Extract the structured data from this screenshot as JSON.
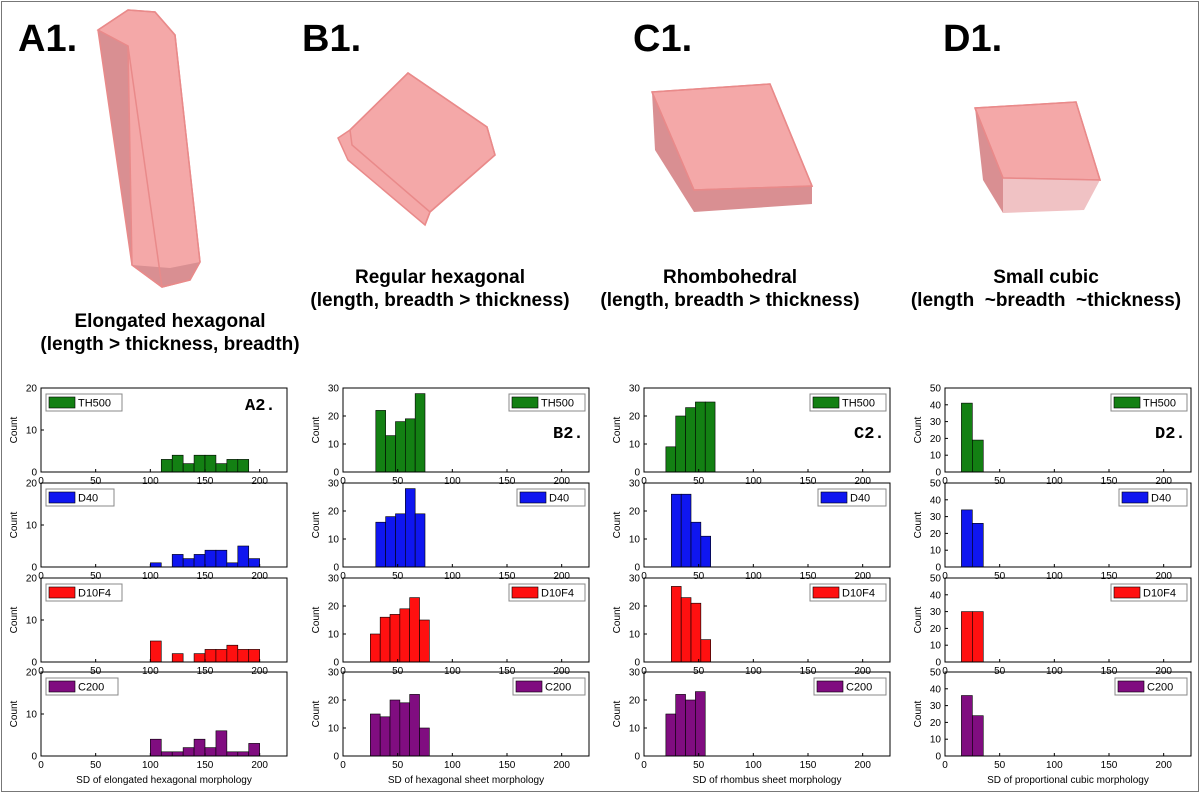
{
  "panels": {
    "A1": {
      "label": "A1.",
      "line1": "Elongated hexagonal",
      "line2": "(length > thickness, breadth)"
    },
    "B1": {
      "label": "B1.",
      "line1": "Regular hexagonal",
      "line2": "(length, breadth > thickness)"
    },
    "C1": {
      "label": "C1.",
      "line1": "Rhombohedral",
      "line2": "(length, breadth > thickness)"
    },
    "D1": {
      "label": "D1.",
      "line1": "Small cubic",
      "line2": "(length  ~breadth  ~thickness)"
    }
  },
  "colors": {
    "crystal_face": "#f4a8a8",
    "crystal_side": "#d98f92",
    "crystal_edge": "#e98a8a",
    "TH500": "#138013",
    "D40": "#0f16f0",
    "D10F4": "#ff1010",
    "C200": "#800d80"
  },
  "chart_data": [
    {
      "type": "bar",
      "id": "A2",
      "sublabel": "A2.",
      "xlabel": "SD of elongated hexagonal morphology",
      "ylabel": "Count",
      "xlim": [
        0,
        225
      ],
      "xticks": [
        0,
        50,
        100,
        150,
        200
      ],
      "bin_width": 10,
      "series": [
        {
          "name": "TH500",
          "ylim": [
            0,
            20
          ],
          "yticks": [
            0,
            10,
            20
          ],
          "bins": [
            [
              110,
              3
            ],
            [
              120,
              4
            ],
            [
              130,
              2
            ],
            [
              140,
              4
            ],
            [
              150,
              4
            ],
            [
              160,
              2
            ],
            [
              170,
              3
            ],
            [
              180,
              3
            ]
          ]
        },
        {
          "name": "D40",
          "ylim": [
            0,
            20
          ],
          "yticks": [
            0,
            10,
            20
          ],
          "bins": [
            [
              100,
              1
            ],
            [
              120,
              3
            ],
            [
              130,
              2
            ],
            [
              140,
              3
            ],
            [
              150,
              4
            ],
            [
              160,
              4
            ],
            [
              170,
              1
            ],
            [
              180,
              5
            ],
            [
              190,
              2
            ]
          ]
        },
        {
          "name": "D10F4",
          "ylim": [
            0,
            20
          ],
          "yticks": [
            0,
            10,
            20
          ],
          "bins": [
            [
              100,
              5
            ],
            [
              120,
              2
            ],
            [
              140,
              2
            ],
            [
              150,
              3
            ],
            [
              160,
              3
            ],
            [
              170,
              4
            ],
            [
              180,
              3
            ],
            [
              190,
              3
            ]
          ]
        },
        {
          "name": "C200",
          "ylim": [
            0,
            20
          ],
          "yticks": [
            0,
            10,
            20
          ],
          "bins": [
            [
              100,
              4
            ],
            [
              110,
              1
            ],
            [
              120,
              1
            ],
            [
              130,
              2
            ],
            [
              140,
              4
            ],
            [
              150,
              2
            ],
            [
              160,
              6
            ],
            [
              170,
              1
            ],
            [
              180,
              1
            ],
            [
              190,
              3
            ]
          ]
        }
      ]
    },
    {
      "type": "bar",
      "id": "B2",
      "sublabel": "B2.",
      "xlabel": "SD of hexagonal sheet morphology",
      "ylabel": "Count",
      "xlim": [
        0,
        225
      ],
      "xticks": [
        0,
        50,
        100,
        150,
        200
      ],
      "bin_width": 9,
      "series": [
        {
          "name": "TH500",
          "ylim": [
            0,
            30
          ],
          "yticks": [
            0,
            10,
            20,
            30
          ],
          "bins": [
            [
              30,
              22
            ],
            [
              39,
              13
            ],
            [
              48,
              18
            ],
            [
              57,
              19
            ],
            [
              66,
              28
            ]
          ]
        },
        {
          "name": "D40",
          "ylim": [
            0,
            30
          ],
          "yticks": [
            0,
            10,
            20,
            30
          ],
          "bins": [
            [
              30,
              16
            ],
            [
              39,
              18
            ],
            [
              48,
              19
            ],
            [
              57,
              28
            ],
            [
              66,
              19
            ]
          ]
        },
        {
          "name": "D10F4",
          "ylim": [
            0,
            30
          ],
          "yticks": [
            0,
            10,
            20,
            30
          ],
          "bins": [
            [
              25,
              10
            ],
            [
              34,
              16
            ],
            [
              43,
              17
            ],
            [
              52,
              19
            ],
            [
              61,
              23
            ],
            [
              70,
              15
            ]
          ]
        },
        {
          "name": "C200",
          "ylim": [
            0,
            30
          ],
          "yticks": [
            0,
            10,
            20,
            30
          ],
          "bins": [
            [
              25,
              15
            ],
            [
              34,
              14
            ],
            [
              43,
              20
            ],
            [
              52,
              19
            ],
            [
              61,
              22
            ],
            [
              70,
              10
            ]
          ]
        }
      ]
    },
    {
      "type": "bar",
      "id": "C2",
      "sublabel": "C2.",
      "xlabel": "SD of rhombus sheet morphology",
      "ylabel": "Count",
      "xlim": [
        0,
        225
      ],
      "xticks": [
        0,
        50,
        100,
        150,
        200
      ],
      "bin_width": 9,
      "series": [
        {
          "name": "TH500",
          "ylim": [
            0,
            30
          ],
          "yticks": [
            0,
            10,
            20,
            30
          ],
          "bins": [
            [
              20,
              9
            ],
            [
              29,
              20
            ],
            [
              38,
              23
            ],
            [
              47,
              25
            ],
            [
              56,
              25
            ]
          ]
        },
        {
          "name": "D40",
          "ylim": [
            0,
            30
          ],
          "yticks": [
            0,
            10,
            20,
            30
          ],
          "bins": [
            [
              25,
              26
            ],
            [
              34,
              26
            ],
            [
              43,
              16
            ],
            [
              52,
              11
            ]
          ]
        },
        {
          "name": "D10F4",
          "ylim": [
            0,
            30
          ],
          "yticks": [
            0,
            10,
            20,
            30
          ],
          "bins": [
            [
              25,
              27
            ],
            [
              34,
              23
            ],
            [
              43,
              21
            ],
            [
              52,
              8
            ]
          ]
        },
        {
          "name": "C200",
          "ylim": [
            0,
            30
          ],
          "yticks": [
            0,
            10,
            20,
            30
          ],
          "bins": [
            [
              20,
              15
            ],
            [
              29,
              22
            ],
            [
              38,
              20
            ],
            [
              47,
              23
            ]
          ]
        }
      ]
    },
    {
      "type": "bar",
      "id": "D2",
      "sublabel": "D2.",
      "xlabel": "SD of proportional cubic morphology",
      "ylabel": "Count",
      "xlim": [
        0,
        225
      ],
      "xticks": [
        0,
        50,
        100,
        150,
        200
      ],
      "bin_width": 10,
      "series": [
        {
          "name": "TH500",
          "ylim": [
            0,
            50
          ],
          "yticks": [
            0,
            10,
            20,
            30,
            40,
            50
          ],
          "bins": [
            [
              15,
              41
            ],
            [
              25,
              19
            ]
          ]
        },
        {
          "name": "D40",
          "ylim": [
            0,
            50
          ],
          "yticks": [
            0,
            10,
            20,
            30,
            40,
            50
          ],
          "bins": [
            [
              15,
              34
            ],
            [
              25,
              26
            ]
          ]
        },
        {
          "name": "D10F4",
          "ylim": [
            0,
            50
          ],
          "yticks": [
            0,
            10,
            20,
            30,
            40,
            50
          ],
          "bins": [
            [
              15,
              30
            ],
            [
              25,
              30
            ]
          ]
        },
        {
          "name": "C200",
          "ylim": [
            0,
            50
          ],
          "yticks": [
            0,
            10,
            20,
            30,
            40,
            50
          ],
          "bins": [
            [
              15,
              36
            ],
            [
              25,
              24
            ]
          ]
        }
      ]
    }
  ]
}
